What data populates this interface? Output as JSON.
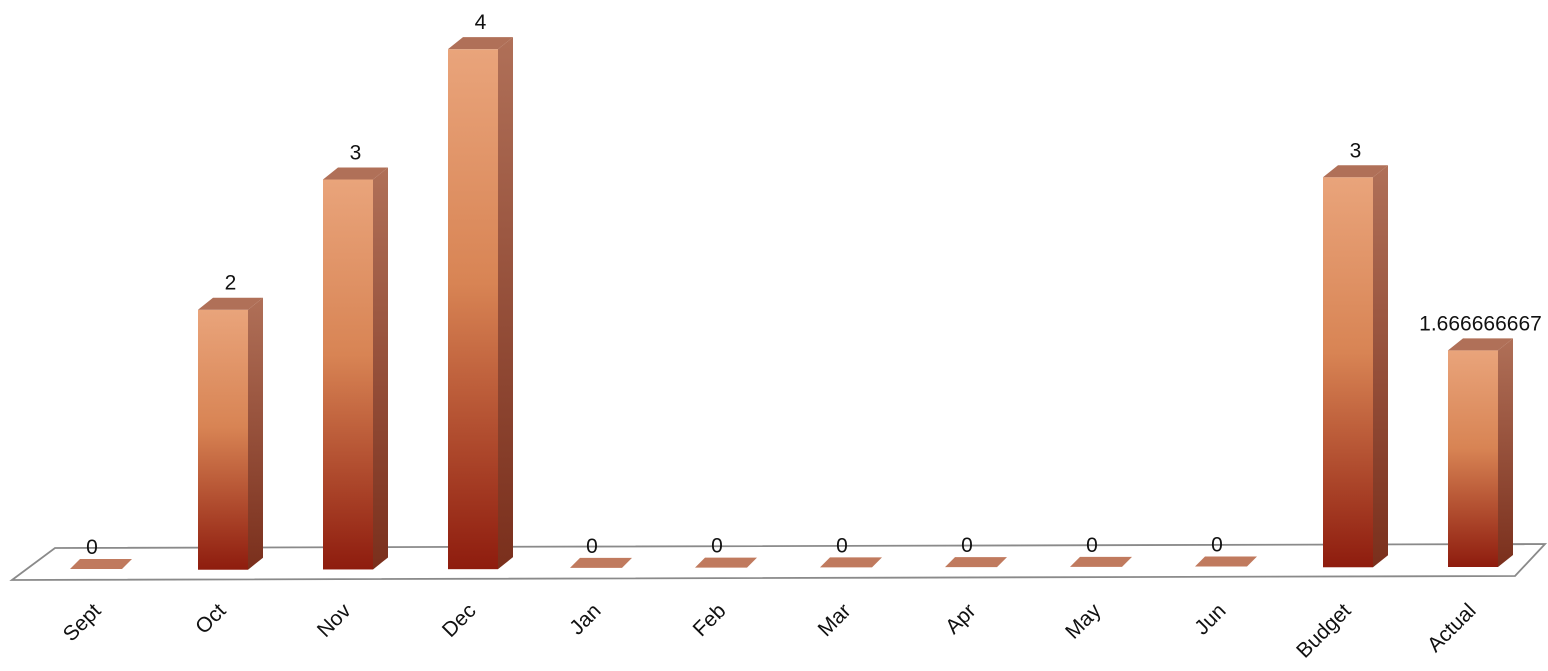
{
  "chart_data": {
    "type": "bar",
    "style": "3d-column",
    "categories": [
      "Sept",
      "Oct",
      "Nov",
      "Dec",
      "Jan",
      "Feb",
      "Mar",
      "Apr",
      "May",
      "Jun",
      "Budget",
      "Actual"
    ],
    "values": [
      0,
      2,
      3,
      4,
      0,
      0,
      0,
      0,
      0,
      0,
      3,
      1.666666667
    ],
    "data_labels": [
      "0",
      "2",
      "3",
      "4",
      "0",
      "0",
      "0",
      "0",
      "0",
      "0",
      "3",
      "1.666666667"
    ],
    "title": "",
    "xlabel": "",
    "ylabel": "",
    "ylim": [
      0,
      4
    ],
    "grid": false,
    "legend": "none",
    "colors": {
      "bar_front_top": "#e9a47b",
      "bar_front_mid": "#d88454",
      "bar_front_bottom": "#8e1c0e",
      "bar_side": "#7a2f1c",
      "bar_top": "#b07058",
      "zero_marker": "#c07a5e",
      "floor_stroke": "#8a8a8a"
    }
  }
}
